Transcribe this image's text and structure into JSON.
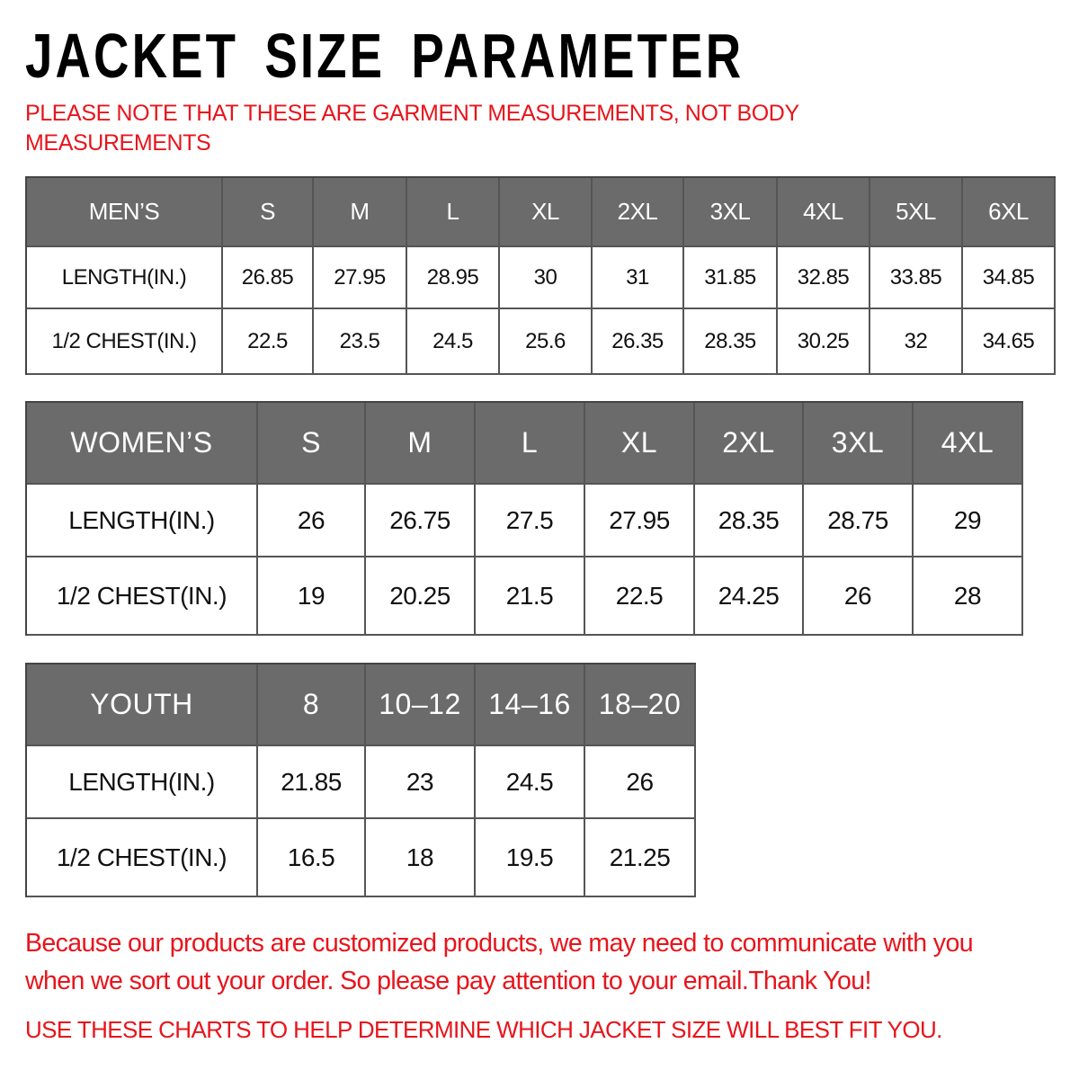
{
  "title": "JACKET SIZE PARAMETER",
  "note_line1": "PLEASE NOTE THAT THESE ARE GARMENT MEASUREMENTS, NOT BODY",
  "note_line2": "MEASUREMENTS",
  "colors": {
    "accent_red": "#e8141b",
    "header_gray": "#6b6b6b"
  },
  "tables": {
    "men": {
      "header": [
        "MEN’S",
        "S",
        "M",
        "L",
        "XL",
        "2XL",
        "3XL",
        "4XL",
        "5XL",
        "6XL"
      ],
      "rows": [
        [
          "LENGTH(IN.)",
          "26.85",
          "27.95",
          "28.95",
          "30",
          "31",
          "31.85",
          "32.85",
          "33.85",
          "34.85"
        ],
        [
          "1/2 CHEST(IN.)",
          "22.5",
          "23.5",
          "24.5",
          "25.6",
          "26.35",
          "28.35",
          "30.25",
          "32",
          "34.65"
        ]
      ]
    },
    "women": {
      "header": [
        "WOMEN’S",
        "S",
        "M",
        "L",
        "XL",
        "2XL",
        "3XL",
        "4XL"
      ],
      "rows": [
        [
          "LENGTH(IN.)",
          "26",
          "26.75",
          "27.5",
          "27.95",
          "28.35",
          "28.75",
          "29"
        ],
        [
          "1/2 CHEST(IN.)",
          "19",
          "20.25",
          "21.5",
          "22.5",
          "24.25",
          "26",
          "28"
        ]
      ]
    },
    "youth": {
      "header": [
        "YOUTH",
        "8",
        "10–12",
        "14–16",
        "18–20"
      ],
      "rows": [
        [
          "LENGTH(IN.)",
          "21.85",
          "23",
          "24.5",
          "26"
        ],
        [
          "1/2 CHEST(IN.)",
          "16.5",
          "18",
          "19.5",
          "21.25"
        ]
      ]
    }
  },
  "footer_line1": "Because our products are customized products, we may need to communicate with you",
  "footer_line2": "when we sort out your order. So please pay attention to your email.Thank You!",
  "footer_line3": "USE THESE CHARTS TO HELP DETERMINE WHICH JACKET SIZE WILL BEST FIT YOU."
}
